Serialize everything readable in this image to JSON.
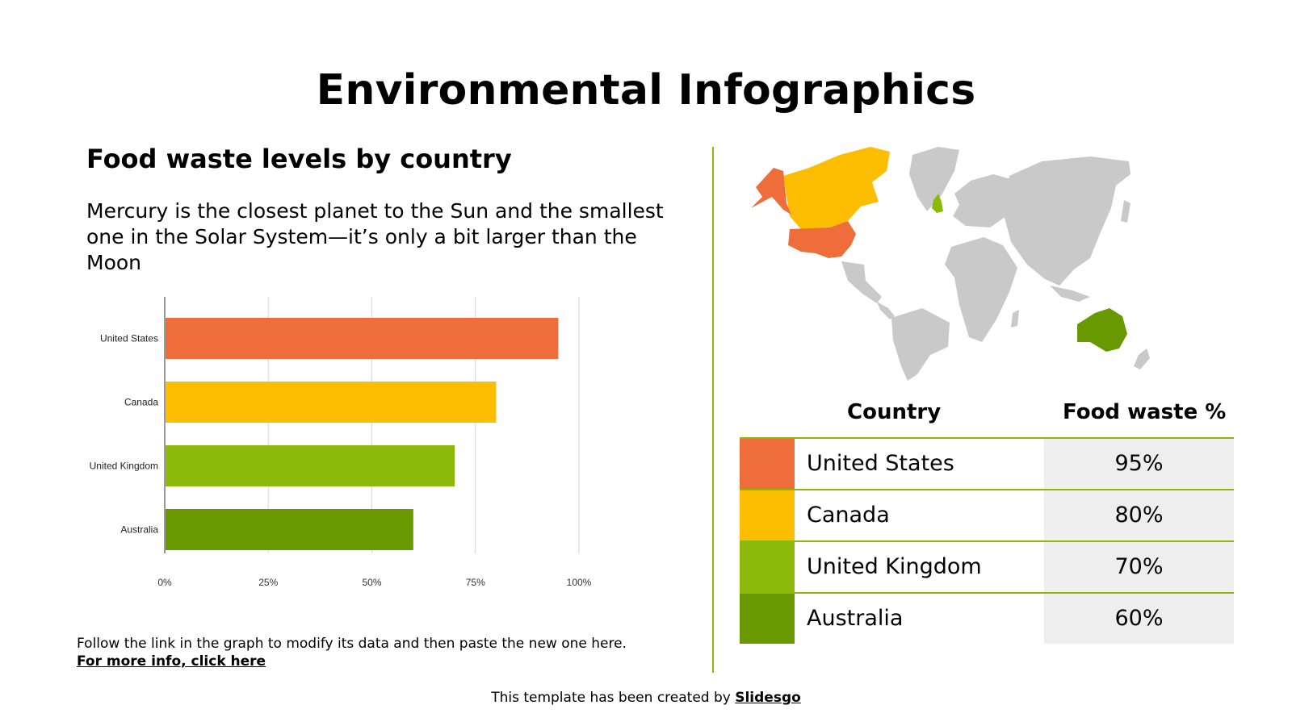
{
  "slide": {
    "title": "Environmental Infographics",
    "subtitle": "Food waste levels by country",
    "description": "Mercury is the closest planet to the Sun and the smallest one in the Solar System—it’s only a bit larger than the Moon",
    "note_text": "Follow the link in the graph to modify its data and then paste the new one here.",
    "note_link": "For more info, click here",
    "credit_text": "This template has been created by",
    "credit_link": "Slidesgo"
  },
  "colors": {
    "united_states": "#ee6d3a",
    "canada": "#fdbd00",
    "united_kingdom": "#8db90a",
    "australia": "#689a00",
    "accent_line": "#8db90a",
    "map_land": "#c9c9c9",
    "cell_background": "#eeeeee"
  },
  "chart_data": {
    "type": "bar",
    "orientation": "horizontal",
    "categories": [
      "United States",
      "Canada",
      "United Kingdom",
      "Australia"
    ],
    "values": [
      95,
      80,
      70,
      60
    ],
    "colors": [
      "#ee6d3a",
      "#fdbd00",
      "#8db90a",
      "#689a00"
    ],
    "x_ticks": [
      "0%",
      "25%",
      "50%",
      "75%",
      "100%"
    ],
    "xlim": [
      0,
      100
    ],
    "unit": "%",
    "grid": true
  },
  "table": {
    "headers": [
      "Country",
      "Food waste %"
    ],
    "rows": [
      {
        "country": "United States",
        "value": "95%",
        "color": "#ee6d3a"
      },
      {
        "country": "Canada",
        "value": "80%",
        "color": "#fdbd00"
      },
      {
        "country": "United Kingdom",
        "value": "70%",
        "color": "#8db90a"
      },
      {
        "country": "Australia",
        "value": "60%",
        "color": "#689a00"
      }
    ]
  },
  "map": {
    "highlighted": [
      {
        "region": "Canada",
        "color": "#fdbd00"
      },
      {
        "region": "United States",
        "color": "#ee6d3a"
      },
      {
        "region": "United Kingdom",
        "color": "#8db90a"
      },
      {
        "region": "Australia",
        "color": "#689a00"
      }
    ]
  }
}
